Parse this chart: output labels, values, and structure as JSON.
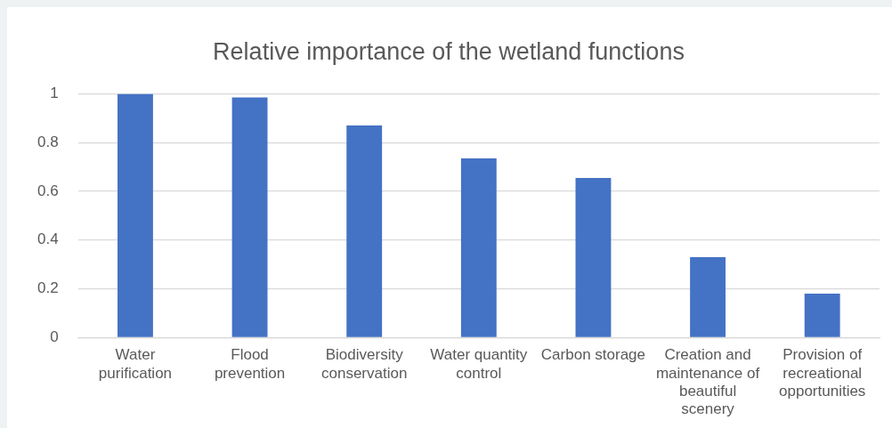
{
  "chart_data": {
    "type": "bar",
    "title": "Relative importance of the wetland functions",
    "categories": [
      "Water purification",
      "Flood prevention",
      "Biodiversity conservation",
      "Water quantity control",
      "Carbon storage",
      "Creation and maintenance of beautiful scenery",
      "Provision of recreational opportunities"
    ],
    "values": [
      1.0,
      0.985,
      0.87,
      0.735,
      0.655,
      0.33,
      0.18
    ],
    "color": "#4472c4",
    "ylim": [
      0,
      1
    ],
    "yticks": [
      0,
      0.2,
      0.4,
      0.6,
      0.8,
      1
    ],
    "grid": "y",
    "legend": false
  }
}
